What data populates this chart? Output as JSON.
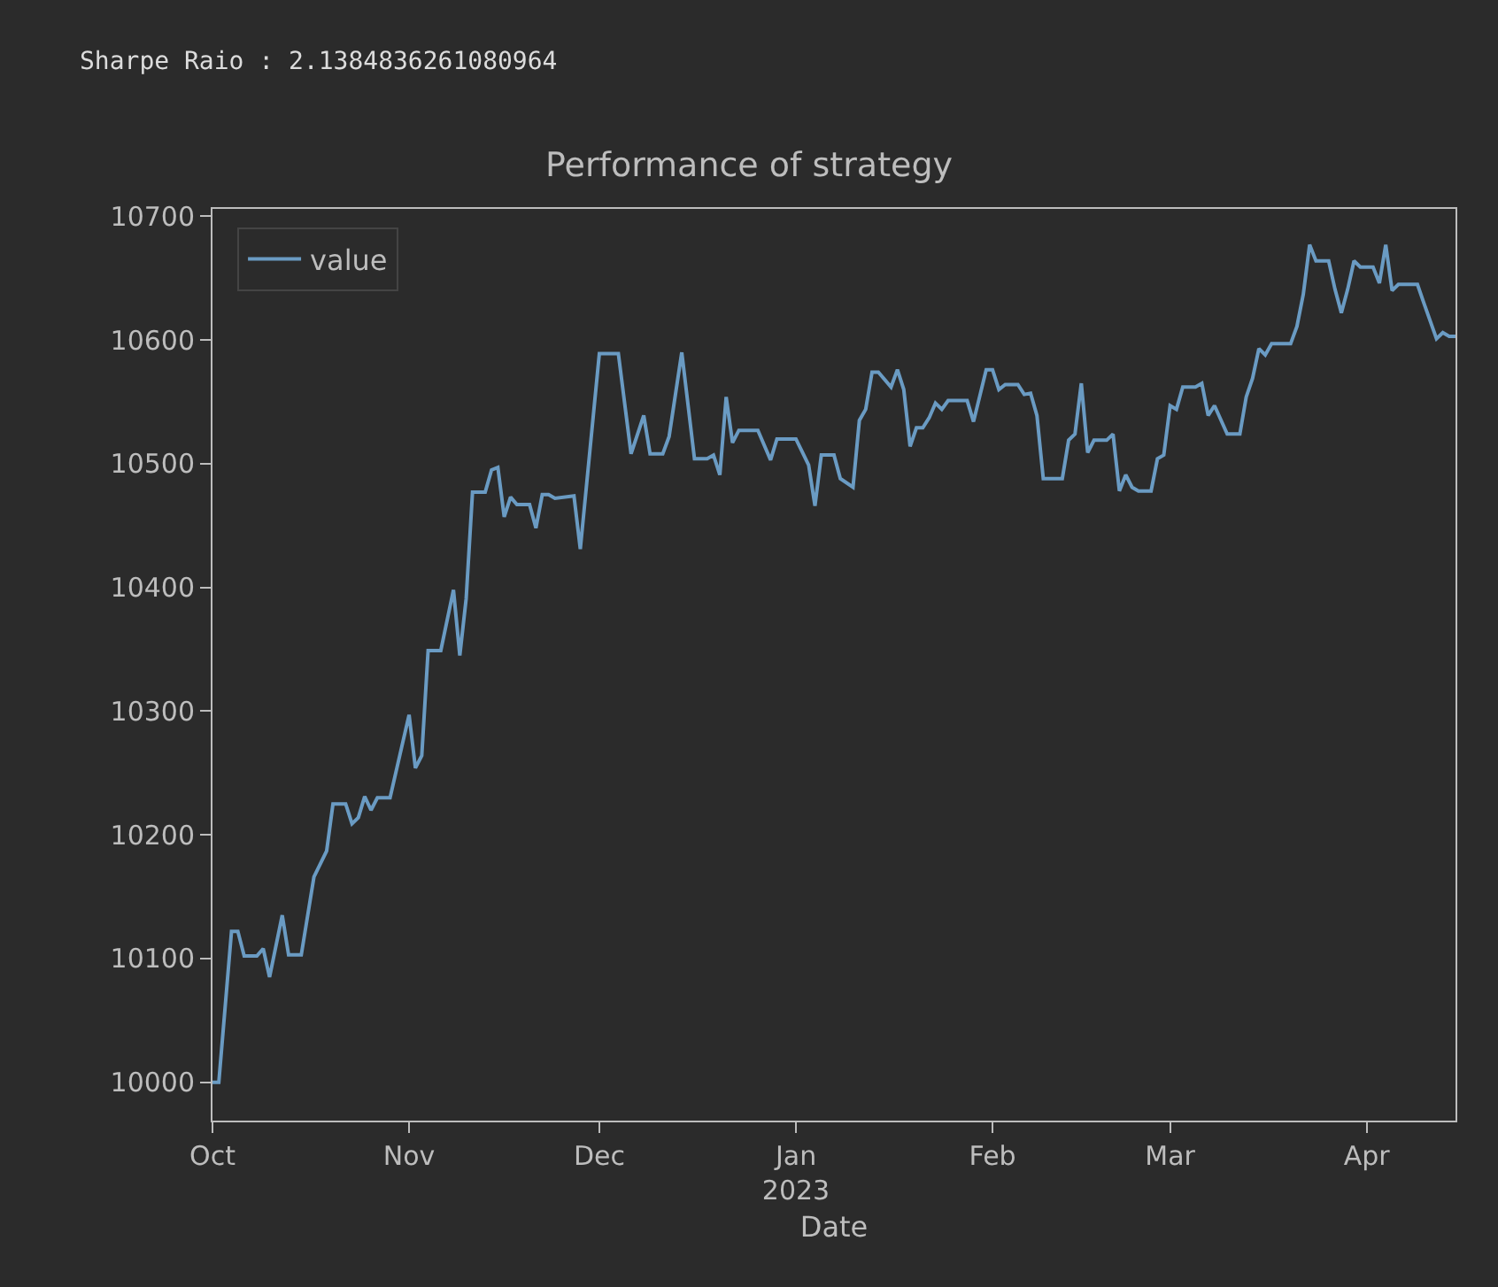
{
  "chart_data": {
    "type": "line",
    "title": "Performance of strategy",
    "xlabel": "Date",
    "legend": "top left",
    "annotations": [
      "Sharpe Raio : 2.1384836261080964"
    ],
    "xlim": [
      "2022-10-01",
      "2023-04-15"
    ],
    "ylim": [
      9969,
      10706
    ],
    "xticks": [
      {
        "value": "2022-10-01",
        "label": "Oct"
      },
      {
        "value": "2022-11-01",
        "label": "Nov"
      },
      {
        "value": "2022-12-01",
        "label": "Dec"
      },
      {
        "value": "2023-01-01",
        "label": "Jan\n2023"
      },
      {
        "value": "2023-02-01",
        "label": "Feb"
      },
      {
        "value": "2023-03-01",
        "label": "Mar"
      },
      {
        "value": "2023-04-01",
        "label": "Apr"
      }
    ],
    "yticks": [
      10000,
      10100,
      10200,
      10300,
      10400,
      10500,
      10600,
      10700
    ],
    "x": [
      "2022-10-01",
      "2022-10-02",
      "2022-10-04",
      "2022-10-05",
      "2022-10-06",
      "2022-10-08",
      "2022-10-09",
      "2022-10-10",
      "2022-10-12",
      "2022-10-13",
      "2022-10-15",
      "2022-10-17",
      "2022-10-19",
      "2022-10-20",
      "2022-10-22",
      "2022-10-23",
      "2022-10-24",
      "2022-10-25",
      "2022-10-26",
      "2022-10-27",
      "2022-10-29",
      "2022-11-01",
      "2022-11-02",
      "2022-11-03",
      "2022-11-04",
      "2022-11-06",
      "2022-11-08",
      "2022-11-09",
      "2022-11-10",
      "2022-11-11",
      "2022-11-13",
      "2022-11-14",
      "2022-11-15",
      "2022-11-16",
      "2022-11-17",
      "2022-11-18",
      "2022-11-20",
      "2022-11-21",
      "2022-11-22",
      "2022-11-23",
      "2022-11-24",
      "2022-11-27",
      "2022-11-28",
      "2022-12-01",
      "2022-12-04",
      "2022-12-06",
      "2022-12-08",
      "2022-12-09",
      "2022-12-11",
      "2022-12-12",
      "2022-12-14",
      "2022-12-16",
      "2022-12-18",
      "2022-12-19",
      "2022-12-20",
      "2022-12-21",
      "2022-12-22",
      "2022-12-23",
      "2022-12-26",
      "2022-12-28",
      "2022-12-29",
      "2023-01-01",
      "2023-01-03",
      "2023-01-04",
      "2023-01-05",
      "2023-01-07",
      "2023-01-08",
      "2023-01-10",
      "2023-01-11",
      "2023-01-12",
      "2023-01-13",
      "2023-01-14",
      "2023-01-16",
      "2023-01-17",
      "2023-01-18",
      "2023-01-19",
      "2023-01-20",
      "2023-01-21",
      "2023-01-22",
      "2023-01-23",
      "2023-01-24",
      "2023-01-25",
      "2023-01-28",
      "2023-01-29",
      "2023-01-31",
      "2023-02-01",
      "2023-02-02",
      "2023-02-03",
      "2023-02-05",
      "2023-02-06",
      "2023-02-07",
      "2023-02-08",
      "2023-02-09",
      "2023-02-12",
      "2023-02-13",
      "2023-02-14",
      "2023-02-15",
      "2023-02-16",
      "2023-02-17",
      "2023-02-19",
      "2023-02-20",
      "2023-02-21",
      "2023-02-22",
      "2023-02-23",
      "2023-02-24",
      "2023-02-26",
      "2023-02-27",
      "2023-02-28",
      "2023-03-01",
      "2023-03-02",
      "2023-03-03",
      "2023-03-05",
      "2023-03-06",
      "2023-03-07",
      "2023-03-08",
      "2023-03-10",
      "2023-03-12",
      "2023-03-13",
      "2023-03-14",
      "2023-03-15",
      "2023-03-16",
      "2023-03-17",
      "2023-03-20",
      "2023-03-21",
      "2023-03-22",
      "2023-03-23",
      "2023-03-24",
      "2023-03-26",
      "2023-03-27",
      "2023-03-28",
      "2023-03-29",
      "2023-03-30",
      "2023-03-31",
      "2023-04-02",
      "2023-04-03",
      "2023-04-04",
      "2023-04-05",
      "2023-04-06",
      "2023-04-09",
      "2023-04-10",
      "2023-04-12",
      "2023-04-13",
      "2023-04-14",
      "2023-04-15"
    ],
    "series": [
      {
        "name": "value",
        "color": "#6a9bc3",
        "values": [
          10000,
          10000,
          10122,
          10122,
          10102,
          10102,
          10108,
          10085,
          10135,
          10103,
          10103,
          10166,
          10187,
          10225,
          10225,
          10209,
          10214,
          10231,
          10220,
          10230,
          10230,
          10297,
          10254,
          10264,
          10349,
          10349,
          10398,
          10345,
          10391,
          10477,
          10477,
          10495,
          10497,
          10457,
          10473,
          10467,
          10467,
          10448,
          10475,
          10475,
          10472,
          10474,
          10431,
          10589,
          10589,
          10508,
          10539,
          10508,
          10508,
          10522,
          10590,
          10504,
          10504,
          10507,
          10491,
          10554,
          10517,
          10527,
          10527,
          10503,
          10520,
          10520,
          10499,
          10466,
          10507,
          10507,
          10488,
          10481,
          10535,
          10544,
          10574,
          10574,
          10562,
          10576,
          10560,
          10514,
          10529,
          10529,
          10537,
          10549,
          10544,
          10551,
          10551,
          10534,
          10576,
          10576,
          10560,
          10564,
          10564,
          10556,
          10557,
          10539,
          10488,
          10488,
          10519,
          10524,
          10565,
          10509,
          10519,
          10519,
          10524,
          10478,
          10491,
          10481,
          10478,
          10478,
          10504,
          10507,
          10547,
          10544,
          10562,
          10562,
          10565,
          10539,
          10547,
          10524,
          10524,
          10554,
          10569,
          10593,
          10588,
          10597,
          10597,
          10611,
          10637,
          10677,
          10664,
          10664,
          10641,
          10622,
          10641,
          10664,
          10659,
          10659,
          10646,
          10677,
          10640,
          10645,
          10645,
          10630,
          10601,
          10606,
          10603,
          10603
        ]
      }
    ]
  }
}
